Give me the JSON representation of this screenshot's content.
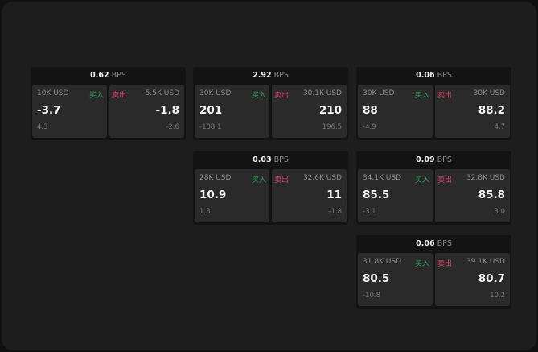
{
  "buy_label": "买入",
  "sell_label": "卖出",
  "unit": "BPS",
  "colors": {
    "buy": "#2fa05a",
    "sell": "#d8436a"
  },
  "cards": [
    {
      "spread": "0.62",
      "buy": {
        "size": "10K USD",
        "price": "-3.7",
        "change": "4.3"
      },
      "sell": {
        "size": "5.5K USD",
        "price": "-1.8",
        "change": "-2.6"
      }
    },
    {
      "spread": "2.92",
      "buy": {
        "size": "30K USD",
        "price": "201",
        "change": "-188.1"
      },
      "sell": {
        "size": "30.1K USD",
        "price": "210",
        "change": "196.5"
      }
    },
    {
      "spread": "0.06",
      "buy": {
        "size": "30K USD",
        "price": "88",
        "change": "-4.9"
      },
      "sell": {
        "size": "30K USD",
        "price": "88.2",
        "change": "4.7"
      }
    },
    {
      "spread": "0.03",
      "buy": {
        "size": "28K USD",
        "price": "10.9",
        "change": "1.3"
      },
      "sell": {
        "size": "32.6K USD",
        "price": "11",
        "change": "-1.8"
      }
    },
    {
      "spread": "0.09",
      "buy": {
        "size": "34.1K USD",
        "price": "85.5",
        "change": "-3.1"
      },
      "sell": {
        "size": "32.8K USD",
        "price": "85.8",
        "change": "3.0"
      }
    },
    {
      "spread": "0.06",
      "buy": {
        "size": "31.8K USD",
        "price": "80.5",
        "change": "-10.8"
      },
      "sell": {
        "size": "39.1K USD",
        "price": "80.7",
        "change": "10.2"
      }
    }
  ]
}
